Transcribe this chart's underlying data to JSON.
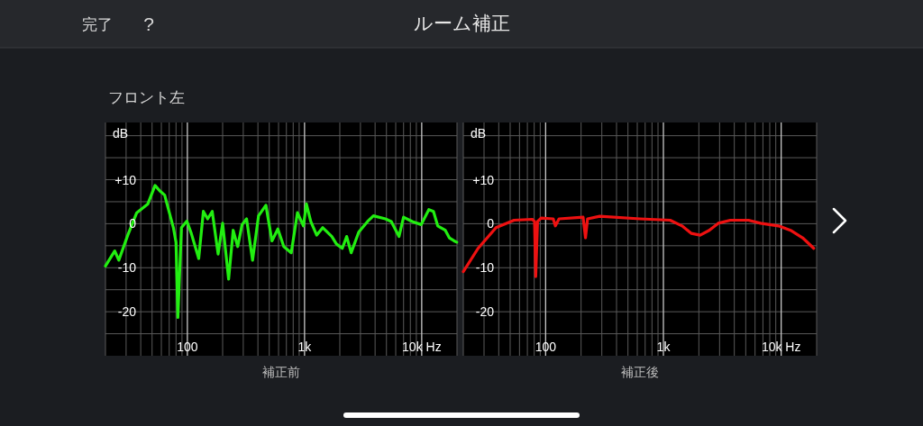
{
  "chart_data": [
    {
      "type": "line",
      "title": "ルーム補正",
      "subtitle": "フロント左",
      "annotations": [
        "完了",
        "?"
      ],
      "xlabel": "補正前",
      "ylabel": "dB",
      "log": "x",
      "grid": true,
      "marker": "none",
      "line_style": "solid",
      "color": "#22ee11",
      "xlim": [
        20,
        20000
      ],
      "ylim": [
        -30,
        23
      ],
      "xticks": [
        {
          "value": 20,
          "label": null
        },
        {
          "value": 30,
          "label": null
        },
        {
          "value": 40,
          "label": null
        },
        {
          "value": 50,
          "label": null
        },
        {
          "value": 60,
          "label": null
        },
        {
          "value": 70,
          "label": null
        },
        {
          "value": 80,
          "label": null
        },
        {
          "value": 90,
          "label": null
        },
        {
          "value": 100,
          "label": "100"
        },
        {
          "value": 200,
          "label": null
        },
        {
          "value": 300,
          "label": null
        },
        {
          "value": 400,
          "label": null
        },
        {
          "value": 500,
          "label": null
        },
        {
          "value": 600,
          "label": null
        },
        {
          "value": 700,
          "label": null
        },
        {
          "value": 800,
          "label": null
        },
        {
          "value": 900,
          "label": null
        },
        {
          "value": 1000,
          "label": "1k"
        },
        {
          "value": 2000,
          "label": null
        },
        {
          "value": 3000,
          "label": null
        },
        {
          "value": 4000,
          "label": null
        },
        {
          "value": 5000,
          "label": null
        },
        {
          "value": 6000,
          "label": null
        },
        {
          "value": 7000,
          "label": null
        },
        {
          "value": 8000,
          "label": null
        },
        {
          "value": 9000,
          "label": null
        },
        {
          "value": 10000,
          "label": "10k Hz"
        },
        {
          "value": 20000,
          "label": null
        }
      ],
      "yticks": [
        {
          "value": 20,
          "label": null
        },
        {
          "value": 15,
          "label": null
        },
        {
          "value": 10,
          "label": "+10"
        },
        {
          "value": 5,
          "label": null
        },
        0,
        {
          "value": -5,
          "label": null
        },
        -10,
        {
          "value": -15,
          "label": null
        },
        -20,
        {
          "value": -25,
          "label": null
        }
      ],
      "x": [
        20,
        24,
        26,
        31,
        37,
        46,
        53,
        58,
        64,
        76,
        80,
        83,
        89,
        99,
        108,
        125,
        137,
        149,
        163,
        183,
        200,
        225,
        246,
        269,
        293,
        320,
        360,
        405,
        468,
        527,
        592,
        665,
        770,
        870,
        978,
        1037,
        1130,
        1270,
        1430,
        1710,
        1870,
        2100,
        2290,
        2500,
        2900,
        3450,
        3870,
        4900,
        5500,
        6400,
        7000,
        8300,
        9900,
        11500,
        12600,
        13700,
        15900,
        17200,
        18900,
        19900
      ],
      "values": [
        -9.6,
        -6.2,
        -8.3,
        -2.6,
        2.5,
        4.5,
        8.7,
        7.5,
        6.5,
        -0.9,
        -4.2,
        -21.3,
        -0.9,
        0.6,
        -2.2,
        -7.9,
        2.8,
        1.1,
        2.8,
        -6.9,
        0.1,
        -12.6,
        -1.5,
        -5.2,
        -0.2,
        1.1,
        -8.3,
        1.8,
        4.2,
        -3.9,
        -1.2,
        -5.2,
        -6.6,
        2.5,
        -0.5,
        4.5,
        0.5,
        -2.6,
        -0.9,
        -2.9,
        -4.6,
        -5.6,
        -2.9,
        -6.6,
        -1.9,
        0.5,
        1.8,
        1.1,
        0.5,
        -2.9,
        1.5,
        0.5,
        -0.2,
        3.2,
        2.8,
        -0.5,
        -1.5,
        -3.2,
        -3.9,
        -4.2
      ]
    },
    {
      "type": "line",
      "xlabel": "補正後",
      "ylabel": "dB",
      "log": "x",
      "grid": true,
      "marker": "none",
      "line_style": "solid",
      "color": "#ee1111",
      "xlim": [
        20,
        20000
      ],
      "ylim": [
        -30,
        23
      ],
      "xticks": [
        {
          "value": 20,
          "label": null
        },
        {
          "value": 30,
          "label": null
        },
        {
          "value": 40,
          "label": null
        },
        {
          "value": 50,
          "label": null
        },
        {
          "value": 60,
          "label": null
        },
        {
          "value": 70,
          "label": null
        },
        {
          "value": 80,
          "label": null
        },
        {
          "value": 90,
          "label": null
        },
        {
          "value": 100,
          "label": "100"
        },
        {
          "value": 200,
          "label": null
        },
        {
          "value": 300,
          "label": null
        },
        {
          "value": 400,
          "label": null
        },
        {
          "value": 500,
          "label": null
        },
        {
          "value": 600,
          "label": null
        },
        {
          "value": 700,
          "label": null
        },
        {
          "value": 800,
          "label": null
        },
        {
          "value": 900,
          "label": null
        },
        {
          "value": 1000,
          "label": "1k"
        },
        {
          "value": 2000,
          "label": null
        },
        {
          "value": 3000,
          "label": null
        },
        {
          "value": 4000,
          "label": null
        },
        {
          "value": 5000,
          "label": null
        },
        {
          "value": 6000,
          "label": null
        },
        {
          "value": 7000,
          "label": null
        },
        {
          "value": 8000,
          "label": null
        },
        {
          "value": 9000,
          "label": null
        },
        {
          "value": 10000,
          "label": "10k Hz"
        },
        {
          "value": 20000,
          "label": null
        }
      ],
      "yticks": [
        {
          "value": 20,
          "label": null
        },
        {
          "value": 15,
          "label": null
        },
        {
          "value": 10,
          "label": "+10"
        },
        {
          "value": 5,
          "label": null
        },
        0,
        {
          "value": -5,
          "label": null
        },
        -10,
        {
          "value": -15,
          "label": null
        },
        -20,
        {
          "value": -25,
          "label": null
        }
      ],
      "x": [
        20,
        26.7,
        37.9,
        54,
        77,
        80.5,
        82.4,
        85.4,
        91.6,
        116,
        121,
        130,
        208,
        218,
        227,
        288,
        636,
        1140,
        1440,
        1730,
        2050,
        2450,
        2920,
        3700,
        5280,
        6670,
        9500,
        12000,
        15200,
        18900
      ],
      "values": [
        -10.9,
        -5.6,
        -0.9,
        0.8,
        1.0,
        0.5,
        -12.0,
        0.5,
        1.3,
        1.1,
        -0.5,
        1.1,
        1.5,
        -3.2,
        1.1,
        1.7,
        1.1,
        0.8,
        -0.5,
        -2.2,
        -2.6,
        -1.5,
        0.1,
        0.8,
        0.8,
        0.1,
        -0.5,
        -1.5,
        -3.2,
        -5.6
      ]
    }
  ]
}
